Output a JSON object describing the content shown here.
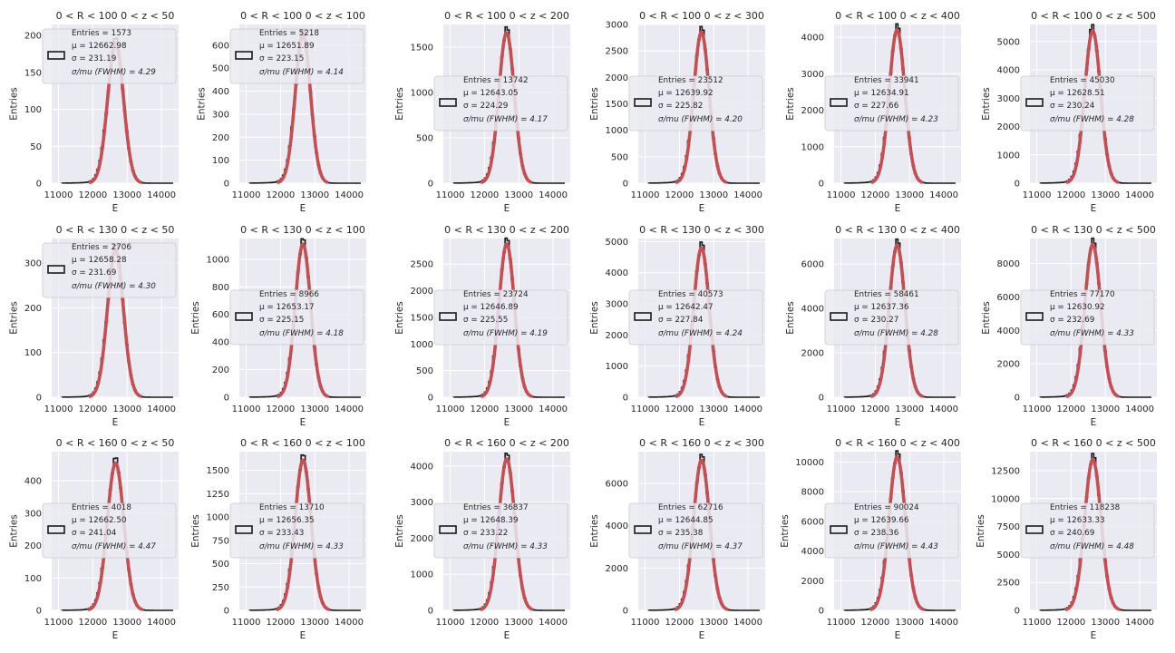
{
  "figure": {
    "rows": 3,
    "cols": 6,
    "colors": {
      "axes_bg": "#EAEAF2",
      "grid": "#FFFFFF",
      "hist": "#1A1A1A",
      "fit": "#C44E52",
      "legend_bg": "#EAEAF2",
      "legend_edge": "#CCCCCC",
      "text": "#262626"
    },
    "legend_labels": {
      "entries": "Entries = ",
      "mu": "μ = ",
      "sigma": "σ = ",
      "resolution": "σ/mu (FWHM) =   "
    }
  },
  "chart_data": [
    {
      "type": "histogram",
      "title": "0 < R < 100 0 < z < 50",
      "xlabel": "E",
      "ylabel": "Entries",
      "xlim": [
        10800,
        14500
      ],
      "ylim": [
        0,
        215
      ],
      "yticks": [
        0,
        50,
        100,
        150,
        200
      ],
      "xticks": [
        11000,
        12000,
        13000,
        14000
      ],
      "entries": "1573",
      "mu": "12662.98",
      "sigma": "231.19",
      "resolution": "4.29",
      "legend_loc": "upper-left",
      "peak": 190
    },
    {
      "type": "histogram",
      "title": "0 < R < 100 0 < z < 100",
      "xlabel": "E",
      "ylabel": "Entries",
      "xlim": [
        10800,
        14500
      ],
      "ylim": [
        0,
        690
      ],
      "yticks": [
        0,
        100,
        200,
        300,
        400,
        500,
        600
      ],
      "xticks": [
        11000,
        12000,
        13000,
        14000
      ],
      "entries": "5218",
      "mu": "12651.89",
      "sigma": "223.15",
      "resolution": "4.14",
      "legend_loc": "upper-left",
      "peak": 645
    },
    {
      "type": "histogram",
      "title": "0 < R < 100 0 < z < 200",
      "xlabel": "E",
      "ylabel": "Entries",
      "xlim": [
        10800,
        14500
      ],
      "ylim": [
        0,
        1750
      ],
      "yticks": [
        0,
        500,
        1000,
        1500
      ],
      "xticks": [
        11000,
        12000,
        13000,
        14000
      ],
      "entries": "13742",
      "mu": "12643.05",
      "sigma": "224.29",
      "resolution": "4.17",
      "legend_loc": "center-left",
      "peak": 1660
    },
    {
      "type": "histogram",
      "title": "0 < R < 100 0 < z < 300",
      "xlabel": "E",
      "ylabel": "Entries",
      "xlim": [
        10800,
        14500
      ],
      "ylim": [
        0,
        3000
      ],
      "yticks": [
        0,
        500,
        1000,
        1500,
        2000,
        2500,
        3000
      ],
      "xticks": [
        11000,
        12000,
        13000,
        14000
      ],
      "entries": "23512",
      "mu": "12639.92",
      "sigma": "225.82",
      "resolution": "4.20",
      "legend_loc": "center-left",
      "peak": 2850
    },
    {
      "type": "histogram",
      "title": "0 < R < 100 0 < z < 400",
      "xlabel": "E",
      "ylabel": "Entries",
      "xlim": [
        10800,
        14500
      ],
      "ylim": [
        0,
        4350
      ],
      "yticks": [
        0,
        1000,
        2000,
        3000,
        4000
      ],
      "xticks": [
        11000,
        12000,
        13000,
        14000
      ],
      "entries": "33941",
      "mu": "12634.91",
      "sigma": "227.66",
      "resolution": "4.23",
      "legend_loc": "center-left",
      "peak": 4200
    },
    {
      "type": "histogram",
      "title": "0 < R < 100 0 < z < 500",
      "xlabel": "E",
      "ylabel": "Entries",
      "xlim": [
        10800,
        14500
      ],
      "ylim": [
        0,
        5600
      ],
      "yticks": [
        0,
        1000,
        2000,
        3000,
        4000,
        5000
      ],
      "xticks": [
        11000,
        12000,
        13000,
        14000
      ],
      "entries": "45030",
      "mu": "12628.51",
      "sigma": "230.24",
      "resolution": "4.28",
      "legend_loc": "center-left",
      "peak": 5380
    },
    {
      "type": "histogram",
      "title": "0 < R < 130 0 < z < 50",
      "xlabel": "E",
      "ylabel": "Entries",
      "xlim": [
        10800,
        14500
      ],
      "ylim": [
        0,
        355
      ],
      "yticks": [
        0,
        100,
        200,
        300
      ],
      "xticks": [
        11000,
        12000,
        13000,
        14000
      ],
      "entries": "2706",
      "mu": "12658.28",
      "sigma": "231.69",
      "resolution": "4.30",
      "legend_loc": "upper-left",
      "peak": 330
    },
    {
      "type": "histogram",
      "title": "0 < R < 130 0 < z < 100",
      "xlabel": "E",
      "ylabel": "Entries",
      "xlim": [
        10800,
        14500
      ],
      "ylim": [
        0,
        1150
      ],
      "yticks": [
        0,
        200,
        400,
        600,
        800,
        1000
      ],
      "xticks": [
        11000,
        12000,
        13000,
        14000
      ],
      "entries": "8966",
      "mu": "12653.17",
      "sigma": "225.15",
      "resolution": "4.18",
      "legend_loc": "center-left",
      "peak": 1110
    },
    {
      "type": "histogram",
      "title": "0 < R < 130 0 < z < 200",
      "xlabel": "E",
      "ylabel": "Entries",
      "xlim": [
        10800,
        14500
      ],
      "ylim": [
        0,
        2980
      ],
      "yticks": [
        0,
        500,
        1000,
        1500,
        2000,
        2500
      ],
      "xticks": [
        11000,
        12000,
        13000,
        14000
      ],
      "entries": "23724",
      "mu": "12646.89",
      "sigma": "225.55",
      "resolution": "4.19",
      "legend_loc": "center-left",
      "peak": 2880
    },
    {
      "type": "histogram",
      "title": "0 < R < 130 0 < z < 300",
      "xlabel": "E",
      "ylabel": "Entries",
      "xlim": [
        10800,
        14500
      ],
      "ylim": [
        0,
        5100
      ],
      "yticks": [
        0,
        1000,
        2000,
        3000,
        4000,
        5000
      ],
      "xticks": [
        11000,
        12000,
        13000,
        14000
      ],
      "entries": "40573",
      "mu": "12642.47",
      "sigma": "227.84",
      "resolution": "4.24",
      "legend_loc": "center-left",
      "peak": 4800
    },
    {
      "type": "histogram",
      "title": "0 < R < 130 0 < z < 400",
      "xlabel": "E",
      "ylabel": "Entries",
      "xlim": [
        10800,
        14500
      ],
      "ylim": [
        0,
        7150
      ],
      "yticks": [
        0,
        2000,
        4000,
        6000
      ],
      "xticks": [
        11000,
        12000,
        13000,
        14000
      ],
      "entries": "58461",
      "mu": "12637.36",
      "sigma": "230.27",
      "resolution": "4.28",
      "legend_loc": "center-left",
      "peak": 6850
    },
    {
      "type": "histogram",
      "title": "0 < R < 130 0 < z < 500",
      "xlabel": "E",
      "ylabel": "Entries",
      "xlim": [
        10800,
        14500
      ],
      "ylim": [
        0,
        9500
      ],
      "yticks": [
        0,
        2000,
        4000,
        6000,
        8000
      ],
      "xticks": [
        11000,
        12000,
        13000,
        14000
      ],
      "entries": "77170",
      "mu": "12630.92",
      "sigma": "232.69",
      "resolution": "4.33",
      "legend_loc": "center-left",
      "peak": 9150
    },
    {
      "type": "histogram",
      "title": "0 < R < 160 0 < z < 50",
      "xlabel": "E",
      "ylabel": "Entries",
      "xlim": [
        10800,
        14500
      ],
      "ylim": [
        0,
        490
      ],
      "yticks": [
        0,
        100,
        200,
        300,
        400
      ],
      "xticks": [
        11000,
        12000,
        13000,
        14000
      ],
      "entries": "4018",
      "mu": "12662.50",
      "sigma": "241.04",
      "resolution": "4.47",
      "legend_loc": "center-left",
      "peak": 455
    },
    {
      "type": "histogram",
      "title": "0 < R < 160 0 < z < 100",
      "xlabel": "E",
      "ylabel": "Entries",
      "xlim": [
        10800,
        14500
      ],
      "ylim": [
        0,
        1700
      ],
      "yticks": [
        0,
        250,
        500,
        750,
        1000,
        1250,
        1500
      ],
      "xticks": [
        11000,
        12000,
        13000,
        14000
      ],
      "entries": "13710",
      "mu": "12656.35",
      "sigma": "233.43",
      "resolution": "4.33",
      "legend_loc": "center-left",
      "peak": 1610
    },
    {
      "type": "histogram",
      "title": "0 < R < 160 0 < z < 200",
      "xlabel": "E",
      "ylabel": "Entries",
      "xlim": [
        10800,
        14500
      ],
      "ylim": [
        0,
        4400
      ],
      "yticks": [
        0,
        1000,
        2000,
        3000,
        4000
      ],
      "xticks": [
        11000,
        12000,
        13000,
        14000
      ],
      "entries": "36837",
      "mu": "12648.39",
      "sigma": "233.22",
      "resolution": "4.33",
      "legend_loc": "center-left",
      "peak": 4200
    },
    {
      "type": "histogram",
      "title": "0 < R < 160 0 < z < 300",
      "xlabel": "E",
      "ylabel": "Entries",
      "xlim": [
        10800,
        14500
      ],
      "ylim": [
        0,
        7500
      ],
      "yticks": [
        0,
        2000,
        4000,
        6000
      ],
      "xticks": [
        11000,
        12000,
        13000,
        14000
      ],
      "entries": "62716",
      "mu": "12644.85",
      "sigma": "235.38",
      "resolution": "4.37",
      "legend_loc": "center-left",
      "peak": 7100
    },
    {
      "type": "histogram",
      "title": "0 < R < 160 0 < z < 400",
      "xlabel": "E",
      "ylabel": "Entries",
      "xlim": [
        10800,
        14500
      ],
      "ylim": [
        0,
        10700
      ],
      "yticks": [
        0,
        2000,
        4000,
        6000,
        8000,
        10000
      ],
      "xticks": [
        11000,
        12000,
        13000,
        14000
      ],
      "entries": "90024",
      "mu": "12639.66",
      "sigma": "238.36",
      "resolution": "4.43",
      "legend_loc": "center-left",
      "peak": 10350
    },
    {
      "type": "histogram",
      "title": "0 < R < 160 0 < z < 500",
      "xlabel": "E",
      "ylabel": "Entries",
      "xlim": [
        10800,
        14500
      ],
      "ylim": [
        0,
        14200
      ],
      "yticks": [
        0,
        2500,
        5000,
        7500,
        10000,
        12500
      ],
      "xticks": [
        11000,
        12000,
        13000,
        14000
      ],
      "entries": "118238",
      "mu": "12633.33",
      "sigma": "240.69",
      "resolution": "4.48",
      "legend_loc": "center-left",
      "peak": 13500
    }
  ]
}
